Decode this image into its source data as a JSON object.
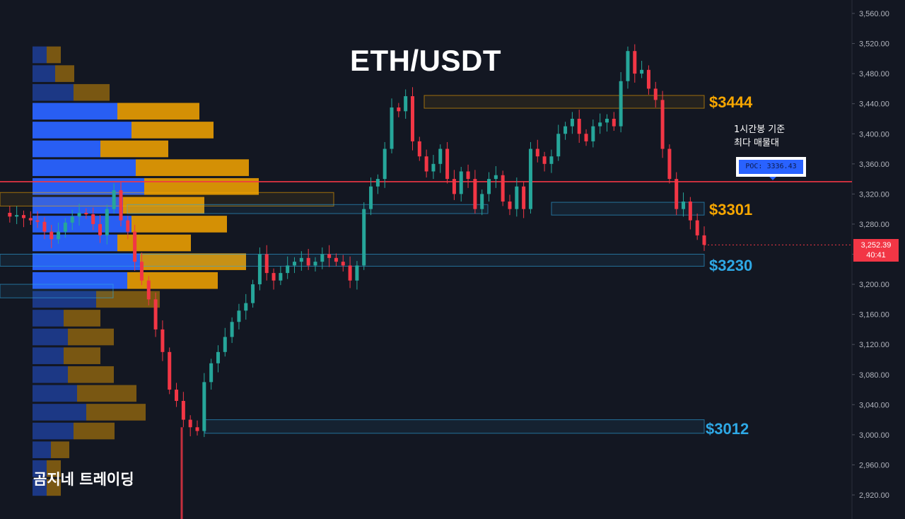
{
  "title": "ETH/USDT",
  "brand": "곰지네 트레이딩",
  "poc_note": [
    "1시간봉 기준",
    "최다 매물대"
  ],
  "poc_label": "POC: 3336.43",
  "levels": [
    {
      "label": "$3444",
      "value": 3444,
      "color": "#f7a600"
    },
    {
      "label": "$3301",
      "value": 3301,
      "color": "#f7a600"
    },
    {
      "label": "$3230",
      "value": 3230,
      "color": "#2ea8e5"
    },
    {
      "label": "$3012",
      "value": 3012,
      "color": "#2ea8e5"
    }
  ],
  "last_price": {
    "value": "3,252.39",
    "countdown": "40:41"
  },
  "colors": {
    "up": "#26a69a",
    "down": "#f23645",
    "poc_line": "#f23645",
    "vp_buy": "#2962ff",
    "vp_sell": "#f7a600",
    "grid": "#1e222d",
    "axis_text": "#b2b5be"
  },
  "chart_data": {
    "type": "candlestick",
    "symbol": "ETH/USDT",
    "timeframe_note": "1시간봉 기준",
    "y_axis": {
      "range": [
        2900,
        3570
      ],
      "ticks": [
        "3,560.00",
        "3,520.00",
        "3,480.00",
        "3,440.00",
        "3,400.00",
        "3,360.00",
        "3,320.00",
        "3,280.00",
        "3,240.00",
        "3,200.00",
        "3,160.00",
        "3,120.00",
        "3,080.00",
        "3,040.00",
        "3,000.00",
        "2,960.00",
        "2,920.00"
      ]
    },
    "poc": 3336.43,
    "close_approx_series": [
      3295,
      3290,
      3292,
      3288,
      3285,
      3283,
      3270,
      3260,
      3270,
      3282,
      3290,
      3295,
      3293,
      3280,
      3265,
      3300,
      3325,
      3285,
      3270,
      3230,
      3205,
      3180,
      3140,
      3110,
      3060,
      3045,
      3020,
      3010,
      3005,
      3070,
      3095,
      3110,
      3130,
      3150,
      3165,
      3175,
      3200,
      3240,
      3215,
      3205,
      3215,
      3225,
      3230,
      3235,
      3225,
      3230,
      3240,
      3235,
      3230,
      3225,
      3205,
      3225,
      3300,
      3330,
      3340,
      3380,
      3435,
      3430,
      3450,
      3390,
      3370,
      3350,
      3360,
      3380,
      3340,
      3320,
      3350,
      3340,
      3300,
      3320,
      3340,
      3345,
      3310,
      3300,
      3330,
      3300,
      3380,
      3370,
      3360,
      3370,
      3400,
      3410,
      3420,
      3400,
      3390,
      3410,
      3415,
      3420,
      3410,
      3470,
      3510,
      3480,
      3485,
      3460,
      3445,
      3380,
      3340,
      3300,
      3310,
      3285,
      3265,
      3252.39
    ],
    "volume_profile": [
      {
        "price": 3505,
        "buy": 20,
        "sell": 20
      },
      {
        "price": 3480,
        "buy": 32,
        "sell": 27
      },
      {
        "price": 3455,
        "buy": 58,
        "sell": 51
      },
      {
        "price": 3430,
        "buy": 120,
        "sell": 116
      },
      {
        "price": 3405,
        "buy": 140,
        "sell": 116
      },
      {
        "price": 3380,
        "buy": 96,
        "sell": 96
      },
      {
        "price": 3355,
        "buy": 146,
        "sell": 160
      },
      {
        "price": 3330,
        "buy": 158,
        "sell": 162
      },
      {
        "price": 3305,
        "buy": 128,
        "sell": 115
      },
      {
        "price": 3280,
        "buy": 140,
        "sell": 135
      },
      {
        "price": 3255,
        "buy": 120,
        "sell": 104
      },
      {
        "price": 3230,
        "buy": 152,
        "sell": 150
      },
      {
        "price": 3205,
        "buy": 134,
        "sell": 128
      },
      {
        "price": 3180,
        "buy": 90,
        "sell": 90
      },
      {
        "price": 3155,
        "buy": 44,
        "sell": 52
      },
      {
        "price": 3130,
        "buy": 50,
        "sell": 65
      },
      {
        "price": 3105,
        "buy": 44,
        "sell": 52
      },
      {
        "price": 3080,
        "buy": 50,
        "sell": 65
      },
      {
        "price": 3055,
        "buy": 63,
        "sell": 84
      },
      {
        "price": 3030,
        "buy": 76,
        "sell": 84
      },
      {
        "price": 3005,
        "buy": 58,
        "sell": 58
      },
      {
        "price": 2980,
        "buy": 26,
        "sell": 26
      },
      {
        "price": 2955,
        "buy": 20,
        "sell": 20
      },
      {
        "price": 2930,
        "buy": 20,
        "sell": 20
      }
    ]
  }
}
